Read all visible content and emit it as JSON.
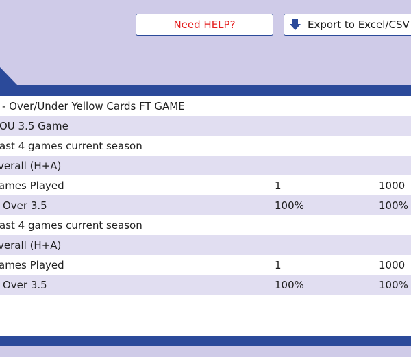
{
  "toolbar": {
    "help_label": "Need HELP?",
    "export_label": "Export to Excel/CSV"
  },
  "table": {
    "rows": [
      {
        "label": "- Over/Under Yellow Cards FT GAME",
        "v1": "",
        "v2": ""
      },
      {
        "label": "OU 3.5 Game",
        "v1": "",
        "v2": ""
      },
      {
        "label": "ast 4 games current season",
        "v1": "",
        "v2": ""
      },
      {
        "label": "verall (H+A)",
        "v1": "",
        "v2": ""
      },
      {
        "label": "ames Played",
        "v1": "1",
        "v2": "1000"
      },
      {
        "label": "Over 3.5",
        "v1": "100%",
        "v2": "100%"
      },
      {
        "label": "ast 4 games current season",
        "v1": "",
        "v2": ""
      },
      {
        "label": "verall (H+A)",
        "v1": "",
        "v2": ""
      },
      {
        "label": "ames Played",
        "v1": "1",
        "v2": "1000"
      },
      {
        "label": "Over 3.5",
        "v1": "100%",
        "v2": "100%"
      }
    ]
  },
  "colors": {
    "page_bg": "#cfcbe8",
    "brand_blue": "#2b4a9a",
    "row_alt": "#e1def1",
    "help_red": "#e41f1f"
  },
  "icons": {
    "export": "arrow-down-icon"
  }
}
